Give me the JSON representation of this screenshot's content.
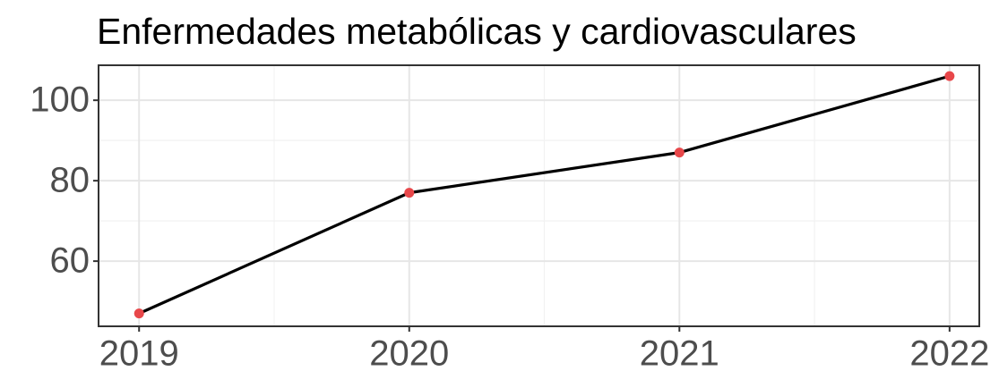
{
  "chart_data": {
    "type": "line",
    "title": "Enfermedades metabólicas y cardiovasculares",
    "x": [
      2019,
      2020,
      2021,
      2022
    ],
    "series": [
      {
        "values": [
          47,
          77,
          87,
          106
        ],
        "color": "#000000",
        "point_color": "#e8474a"
      }
    ],
    "xlim": [
      2018.85,
      2022.11
    ],
    "xticks": [
      2019,
      2020,
      2021,
      2022
    ],
    "ylim": [
      43.8,
      108.7
    ],
    "yticks": [
      60,
      80,
      100
    ],
    "grid": true
  }
}
